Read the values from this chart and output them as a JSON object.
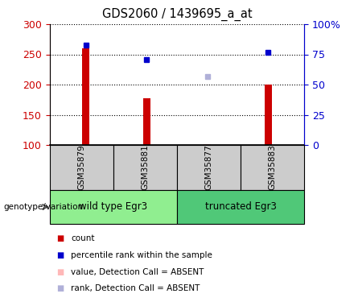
{
  "title": "GDS2060 / 1439695_a_at",
  "samples": [
    "GSM35879",
    "GSM35881",
    "GSM35877",
    "GSM35883"
  ],
  "bar_values": [
    260,
    178,
    102,
    200
  ],
  "rank_values_pct": [
    82.5,
    71,
    null,
    76.5
  ],
  "absent_value_left": [
    null,
    null,
    213,
    null
  ],
  "bar_color": "#CC0000",
  "absent_bar_color": "#FFB8B8",
  "rank_color": "#0000CC",
  "absent_rank_color": "#B0B0D8",
  "ylim_left": [
    100,
    300
  ],
  "ylim_right": [
    0,
    100
  ],
  "yticks_left": [
    100,
    150,
    200,
    250,
    300
  ],
  "yticks_right": [
    0,
    25,
    50,
    75,
    100
  ],
  "ytick_labels_right": [
    "0",
    "25",
    "50",
    "75",
    "100%"
  ],
  "bar_width": 0.12,
  "sample_color": "#CCCCCC",
  "group_defs": [
    {
      "label": "wild type Egr3",
      "xstart": 0,
      "xend": 2,
      "color": "#90EE90"
    },
    {
      "label": "truncated Egr3",
      "xstart": 2,
      "xend": 4,
      "color": "#50C878"
    }
  ],
  "legend_items": [
    {
      "color": "#CC0000",
      "label": "count"
    },
    {
      "color": "#0000CC",
      "label": "percentile rank within the sample"
    },
    {
      "color": "#FFB8B8",
      "label": "value, Detection Call = ABSENT"
    },
    {
      "color": "#B0B0D8",
      "label": "rank, Detection Call = ABSENT"
    }
  ]
}
